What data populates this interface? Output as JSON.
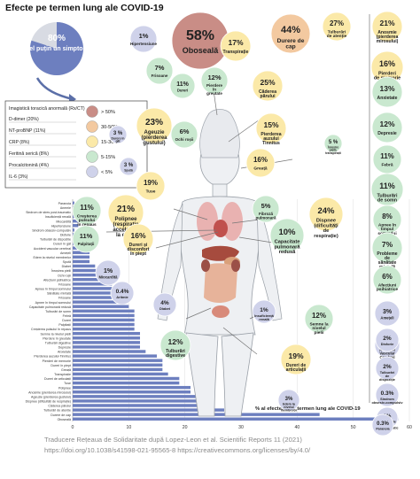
{
  "title": "Efecte pe termen lung ale COVID-19",
  "footer": {
    "line1": "Traducere Rețeaua de Solidaritate după Lopez-Leon et al. Scientific Reports 11 (2021)",
    "line2": "https://doi.org/10.1038/s41598-021-95565-8  https://creativecommons.org/licenses/by/4.0/"
  },
  "colors": {
    "gt50": "#c98d86",
    "r30_50": "#f3c9a0",
    "r15_30": "#fbe9a8",
    "r5_15": "#c9e8cf",
    "lt5": "#cfd2ea",
    "bar": "#6d7fbf",
    "pie_main": "#6d7fbf",
    "pie_bg": "#d8dbe3",
    "arrow": "#5b6fa8"
  },
  "pie": {
    "value": "80%",
    "label": "Cel puțin un simptom",
    "fraction": 0.8
  },
  "legend": {
    "title": "Imagistică toracică anormală (Rx/CT)",
    "items": [
      {
        "label": "> 50%",
        "color": "gt50"
      },
      {
        "label": "30-50%",
        "color": "r30_50"
      },
      {
        "label": "15-30%",
        "color": "r15_30"
      },
      {
        "label": "5-15%",
        "color": "r5_15"
      },
      {
        "label": "< 5%",
        "color": "lt5"
      }
    ],
    "labs": [
      "D-dimer (20%)",
      "NT-proBNP (11%)",
      "CRP (8%)",
      "Feritină serică (8%)",
      "Procalcitonină (4%)",
      "IL-6 (3%)"
    ]
  },
  "circles": [
    {
      "v": "58%",
      "t": "Oboseală",
      "c": "gt50"
    },
    {
      "v": "44%",
      "t": "Durere de cap",
      "c": "r30_50"
    },
    {
      "v": "27%",
      "t": "Tulburări de atenție",
      "c": "r15_30"
    },
    {
      "v": "21%",
      "t": "Anosmie (pierderea mirosului)",
      "c": "r15_30"
    },
    {
      "v": "1%",
      "t": "Hipertensiune",
      "c": "lt5"
    },
    {
      "v": "17%",
      "t": "Transpirație",
      "c": "r15_30"
    },
    {
      "v": "16%",
      "t": "Pierderi de memorie",
      "c": "r15_30"
    },
    {
      "v": "7%",
      "t": "Frisoane",
      "c": "r5_15"
    },
    {
      "v": "11%",
      "t": "Dureri",
      "c": "r5_15"
    },
    {
      "v": "12%",
      "t": "Pierdere în greutate",
      "c": "r5_15"
    },
    {
      "v": "25%",
      "t": "Căderea părului",
      "c": "r15_30"
    },
    {
      "v": "13%",
      "t": "Anxietate",
      "c": "r5_15"
    },
    {
      "v": "23%",
      "t": "Ageuzie (pierderea gustului)",
      "c": "r15_30"
    },
    {
      "v": "6%",
      "t": "Ochi roșii",
      "c": "r5_15"
    },
    {
      "v": "15%",
      "t": "Pierderea auzului Tinnitus",
      "c": "r15_30"
    },
    {
      "v": "12%",
      "t": "Depresie",
      "c": "r5_15"
    },
    {
      "v": "3 %",
      "t": "Durere în gât",
      "c": "lt5"
    },
    {
      "v": "5 %",
      "t": "Înroșire pielii, transpirații",
      "c": "r5_15"
    },
    {
      "v": "11%",
      "t": "Febră",
      "c": "r5_15"
    },
    {
      "v": "3 %",
      "t": "Spută",
      "c": "lt5"
    },
    {
      "v": "16%",
      "t": "Greață",
      "c": "r15_30"
    },
    {
      "v": "19%",
      "t": "Tuse",
      "c": "r15_30"
    },
    {
      "v": "11%",
      "t": "Tulburări de somn",
      "c": "r5_15"
    },
    {
      "v": "11%",
      "t": "Creșterea pulsului în repaus",
      "c": "r5_15"
    },
    {
      "v": "21%",
      "t": "Polipnee (respirație accelerată la efort)",
      "c": "r15_30"
    },
    {
      "v": "5%",
      "t": "Fibroză pulmonară",
      "c": "r5_15"
    },
    {
      "v": "24%",
      "t": "Dispnee (dificultăți de respirație)",
      "c": "r15_30"
    },
    {
      "v": "8%",
      "t": "Apnee în timpul somnului",
      "c": "r5_15"
    },
    {
      "v": "11%",
      "t": "Palpitații",
      "c": "r5_15"
    },
    {
      "v": "16%",
      "t": "Dureri și disconfort în piept",
      "c": "r15_30"
    },
    {
      "v": "10%",
      "t": "Capacitate pulmonară redusă",
      "c": "r5_15"
    },
    {
      "v": "7%",
      "t": "Probleme de sănătate mintală legate de tulburări obsesiv compulsive",
      "c": "r5_15"
    },
    {
      "v": "1%",
      "t": "Miocardită",
      "c": "lt5"
    },
    {
      "v": "6%",
      "t": "Afecțiuni psihiatrice",
      "c": "r5_15"
    },
    {
      "v": "0.4%",
      "t": "Aritmie",
      "c": "lt5"
    },
    {
      "v": "3%",
      "t": "Amețeli",
      "c": "lt5"
    },
    {
      "v": "4%",
      "t": "Diabet",
      "c": "lt5"
    },
    {
      "v": "3%",
      "t": "Accident Vascular Cerebral",
      "c": "lt5"
    },
    {
      "v": "1%",
      "t": "Insuficiență renală",
      "c": "lt5"
    },
    {
      "v": "12%",
      "t": "Semne la nivelul pielii",
      "c": "r5_15"
    },
    {
      "v": "2%",
      "t": "Disforie",
      "c": "lt5"
    },
    {
      "v": "12%",
      "t": "Tulburări digestive",
      "c": "r5_15"
    },
    {
      "v": "2%",
      "t": "Tulburări de dispoziție",
      "c": "lt5"
    },
    {
      "v": "19%",
      "t": "Dureri de articulații",
      "c": "r15_30"
    },
    {
      "v": "0.3%",
      "t": "Sindrom obsesiv-compulsiv",
      "c": "lt5"
    },
    {
      "v": "3%",
      "t": "Edem la nivelul membrelor",
      "c": "lt5"
    },
    {
      "v": "1%",
      "t": "Sindrom de stres post-traumatic",
      "c": "lt5"
    },
    {
      "v": "0.3%",
      "t": "Paranoia",
      "c": "lt5"
    }
  ],
  "chart_data": {
    "type": "bar",
    "orientation": "horizontal",
    "xlabel": "% al efectelor pe termen lung ale COVID-19",
    "xlim": [
      0,
      60
    ],
    "xticks": [
      0,
      10,
      20,
      30,
      40,
      50,
      60
    ],
    "grid": true,
    "categories": [
      "Paranoia",
      "Anemie",
      "Sindrom de stres post-traumatic",
      "Insuficiență renală",
      "Miocardită",
      "Hipertensiune",
      "Sindrom obsesiv-compulsiv",
      "Disforie",
      "Tulburări de dispoziție",
      "Dureri în gât",
      "Accident vascular cerebral",
      "Amețeli",
      "Edem la nivelul membrelor",
      "Spută",
      "Diabet",
      "Înroșirea pielii",
      "Ochi roșii",
      "Afecțiuni psihiatrice",
      "Frisoane",
      "Apnee în timpul somnului",
      "Sănătate mintală",
      "Frisoane",
      "Apnee în timpul somnului",
      "Capacitate pulmonară redusă",
      "Tulburări de somn",
      "Febră",
      "Dureri",
      "Palpitații",
      "Creșterea pulsului în repaus",
      "Semne la nivelul pielii",
      "Pierdere în greutate",
      "Tulburări digestive",
      "Depresie",
      "Anxietate",
      "Pierderea auzului-Tinnitus",
      "Pierderi de memorie",
      "Dureri în piept",
      "Greață",
      "Transpirație",
      "Dureri de articulații",
      "Tuse",
      "Polipnee",
      "Anosmie (pierderea mirosului)",
      "Ageuzie (pierderea gustului)",
      "Dispnee (dificultăți de respirație)",
      "Căderea părului",
      "Tulburări de atenție",
      "Durere de cap",
      "Oboseală"
    ],
    "values": [
      0.3,
      0.9,
      1,
      1,
      1,
      1,
      0.3,
      2,
      2,
      3,
      3,
      3,
      3,
      3,
      4,
      5,
      6,
      6,
      7,
      8,
      7,
      7,
      8,
      10,
      11,
      11,
      11,
      11,
      11,
      12,
      12,
      12,
      12,
      13,
      15,
      16,
      16,
      16,
      17,
      19,
      19,
      21,
      21,
      23,
      24,
      25,
      27,
      44,
      58
    ]
  }
}
